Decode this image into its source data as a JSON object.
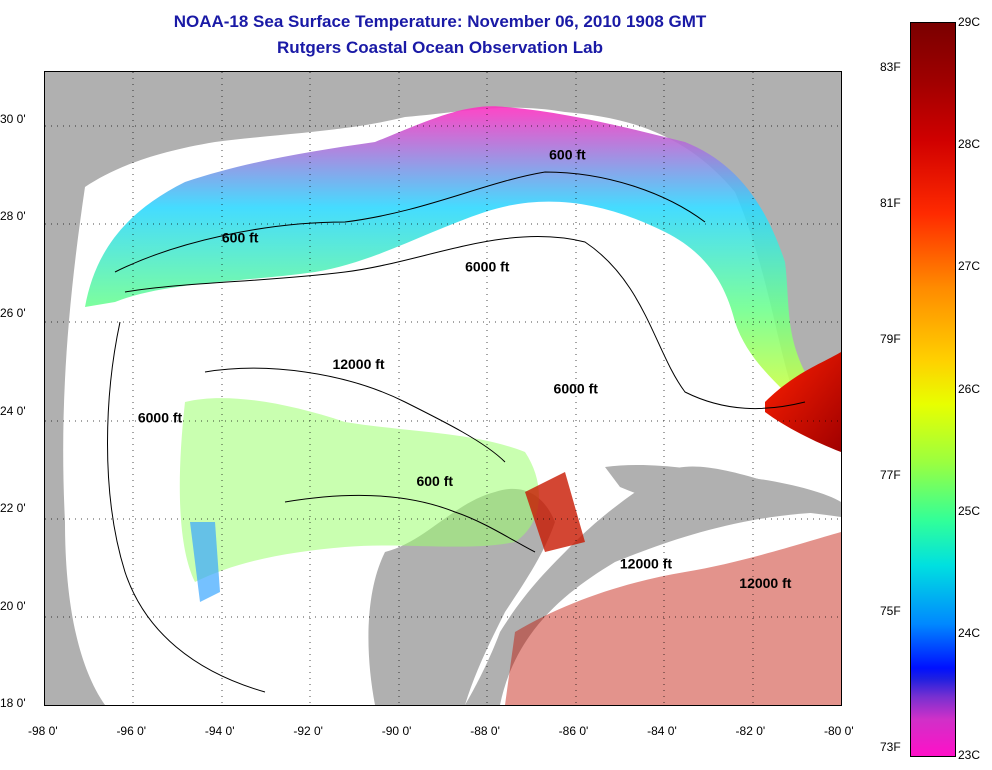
{
  "title": {
    "line1": "NOAA-18 Sea Surface Temperature:  November 06, 2010 1908 GMT",
    "line2": "Rutgers Coastal Ocean Observation Lab"
  },
  "map": {
    "lon_range": [
      -98,
      -80
    ],
    "lat_range": [
      18,
      31
    ],
    "x_ticks": [
      "-98 0'",
      "-96 0'",
      "-94 0'",
      "-92 0'",
      "-90 0'",
      "-88 0'",
      "-86 0'",
      "-84 0'",
      "-82 0'",
      "-80 0'"
    ],
    "y_ticks": [
      "30 0'",
      "28 0'",
      "26 0'",
      "24 0'",
      "22 0'",
      "20 0'",
      "18 0'"
    ],
    "contour_labels": [
      {
        "text": "600 ft",
        "lon": -94.0,
        "lat": 27.5
      },
      {
        "text": "600 ft",
        "lon": -86.6,
        "lat": 29.2
      },
      {
        "text": "6000 ft",
        "lon": -88.5,
        "lat": 26.9
      },
      {
        "text": "12000 ft",
        "lon": -91.5,
        "lat": 24.9
      },
      {
        "text": "6000 ft",
        "lon": -95.9,
        "lat": 23.8
      },
      {
        "text": "6000 ft",
        "lon": -86.5,
        "lat": 24.4
      },
      {
        "text": "600 ft",
        "lon": -89.6,
        "lat": 22.5
      },
      {
        "text": "12000 ft",
        "lon": -85.0,
        "lat": 20.8
      },
      {
        "text": "12000 ft",
        "lon": -82.3,
        "lat": 20.4
      }
    ],
    "colors": {
      "land": "#b0b0b0",
      "sea_no_data": "#ffffff"
    }
  },
  "colorbar": {
    "celsius_labels": [
      "29C",
      "28C",
      "27C",
      "26C",
      "25C",
      "24C",
      "23C"
    ],
    "fahrenheit_labels": [
      "83F",
      "81F",
      "79F",
      "77F",
      "75F",
      "73F"
    ]
  }
}
